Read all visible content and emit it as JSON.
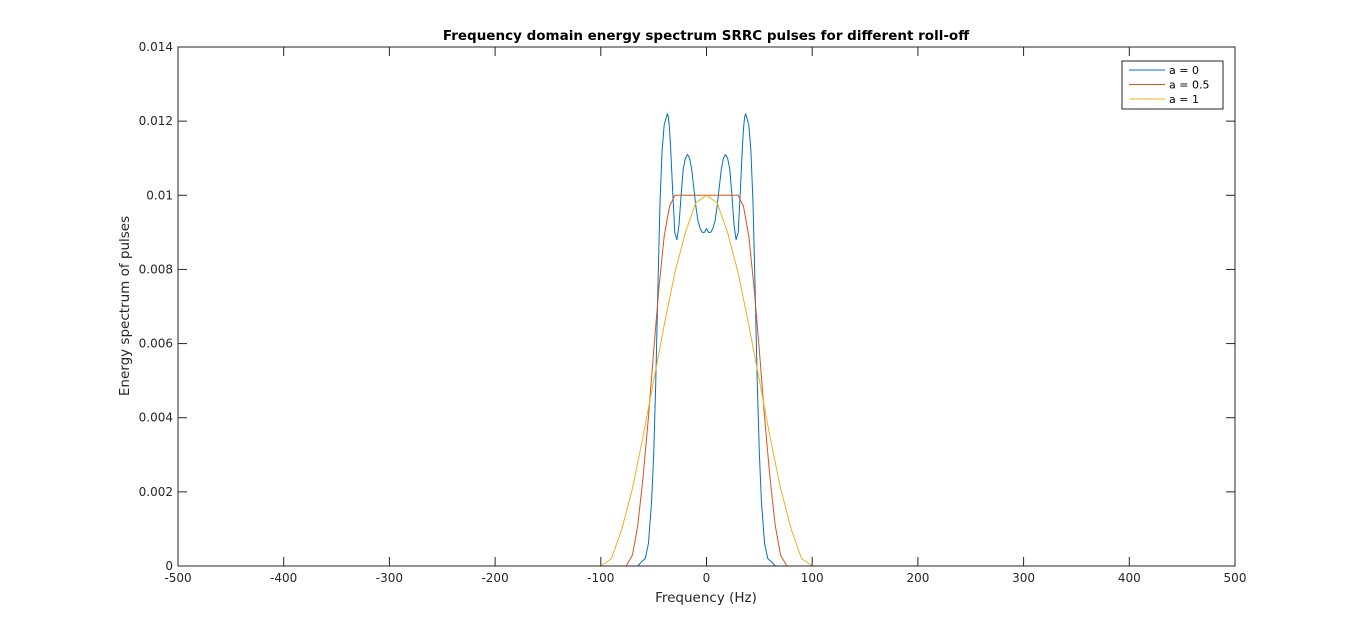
{
  "chart_data": {
    "type": "line",
    "title": "Frequency domain energy spectrum SRRC pulses for different roll-off",
    "xlabel": "Frequency (Hz)",
    "ylabel": "Energy spectrum of pulses",
    "xlim": [
      -500,
      500
    ],
    "ylim": [
      0,
      0.014
    ],
    "x_ticks": [
      "-500",
      "-400",
      "-300",
      "-200",
      "-100",
      "0",
      "100",
      "200",
      "300",
      "400",
      "500"
    ],
    "y_ticks": [
      "0",
      "0.002",
      "0.004",
      "0.006",
      "0.008",
      "0.01",
      "0.012",
      "0.014"
    ],
    "grid": false,
    "legend_position": "top-right",
    "series": [
      {
        "name": "a = 0",
        "color": "#0072BD",
        "x": [
          -500,
          -100,
          -65,
          -62,
          -58,
          -55,
          -52,
          -50,
          -48,
          -46,
          -44,
          -42,
          -40,
          -38,
          -37,
          -36,
          -35,
          -34,
          -32,
          -30,
          -28,
          -26,
          -24,
          -22,
          -20,
          -18,
          -16,
          -14,
          -12,
          -10,
          -8,
          -6,
          -4,
          -2,
          0,
          2,
          4,
          6,
          8,
          10,
          12,
          14,
          16,
          18,
          20,
          22,
          24,
          26,
          28,
          30,
          32,
          34,
          35,
          36,
          37,
          38,
          40,
          42,
          44,
          46,
          48,
          50,
          52,
          55,
          58,
          62,
          65,
          100,
          500
        ],
        "y": [
          0,
          0,
          0,
          0.0001,
          0.0002,
          0.0006,
          0.0017,
          0.003,
          0.005,
          0.0075,
          0.0098,
          0.0112,
          0.0119,
          0.0121,
          0.0122,
          0.0121,
          0.0118,
          0.0113,
          0.0101,
          0.009,
          0.0088,
          0.0092,
          0.01,
          0.0107,
          0.011,
          0.0111,
          0.011,
          0.0107,
          0.0102,
          0.0097,
          0.0093,
          0.0091,
          0.009,
          0.009,
          0.0091,
          0.009,
          0.009,
          0.0091,
          0.0093,
          0.0097,
          0.0102,
          0.0107,
          0.011,
          0.0111,
          0.011,
          0.0107,
          0.01,
          0.0092,
          0.0088,
          0.009,
          0.0101,
          0.0113,
          0.0118,
          0.0121,
          0.0122,
          0.0121,
          0.0119,
          0.0112,
          0.0098,
          0.0075,
          0.005,
          0.003,
          0.0017,
          0.0006,
          0.0002,
          0.0001,
          0,
          0,
          0
        ]
      },
      {
        "name": "a = 0.5",
        "color": "#D95319",
        "x": [
          -500,
          -100,
          -76,
          -70,
          -65,
          -60,
          -55,
          -50,
          -45,
          -40,
          -35,
          -30,
          -25,
          -20,
          -10,
          0,
          10,
          20,
          25,
          30,
          35,
          40,
          45,
          50,
          55,
          60,
          65,
          70,
          76,
          100,
          500
        ],
        "y": [
          0,
          0,
          0,
          0.0003,
          0.0011,
          0.0024,
          0.004,
          0.0058,
          0.0075,
          0.0089,
          0.0097,
          0.01,
          0.01,
          0.01,
          0.01,
          0.01,
          0.01,
          0.01,
          0.01,
          0.01,
          0.0097,
          0.0089,
          0.0075,
          0.0058,
          0.004,
          0.0024,
          0.0011,
          0.0003,
          0,
          0,
          0
        ]
      },
      {
        "name": "a = 1",
        "color": "#EDB120",
        "x": [
          -500,
          -102,
          -100,
          -90,
          -80,
          -70,
          -60,
          -50,
          -40,
          -30,
          -20,
          -10,
          0,
          10,
          20,
          30,
          40,
          50,
          60,
          70,
          80,
          90,
          100,
          102,
          500
        ],
        "y": [
          0,
          0,
          0,
          0.0002,
          0.001,
          0.0021,
          0.0035,
          0.005,
          0.0065,
          0.0079,
          0.009,
          0.0098,
          0.01,
          0.0098,
          0.009,
          0.0079,
          0.0065,
          0.005,
          0.0035,
          0.0021,
          0.001,
          0.0002,
          0,
          0,
          0
        ]
      }
    ]
  }
}
